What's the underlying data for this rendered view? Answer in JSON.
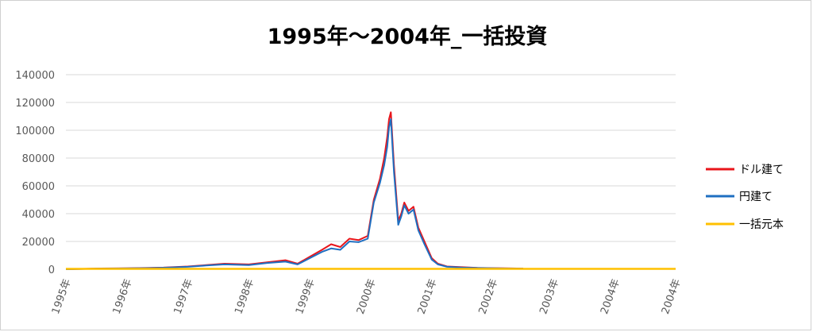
{
  "chart_data": {
    "type": "line",
    "title": "1995年～2004年_一括投資",
    "xlabel": "",
    "ylabel": "",
    "x_ticks": [
      "1995年",
      "1996年",
      "1997年",
      "1998年",
      "1999年",
      "2000年",
      "2001年",
      "2002年",
      "2003年",
      "2004年",
      "2004年"
    ],
    "x_range": [
      1995.0,
      2005.0
    ],
    "ylim": [
      0,
      140000
    ],
    "y_ticks": [
      "0",
      "20000",
      "40000",
      "60000",
      "80000",
      "100000",
      "120000",
      "140000"
    ],
    "grid": true,
    "legend_position": "right",
    "series": [
      {
        "name": "ドル建て",
        "color": "#e8151b",
        "x": [
          1995.0,
          1995.5,
          1996.0,
          1996.3,
          1996.6,
          1997.0,
          1997.3,
          1997.6,
          1998.0,
          1998.3,
          1998.6,
          1998.8,
          1999.0,
          1999.2,
          1999.35,
          1999.5,
          1999.65,
          1999.8,
          1999.95,
          2000.05,
          2000.15,
          2000.22,
          2000.27,
          2000.3,
          2000.33,
          2000.38,
          2000.45,
          2000.5,
          2000.55,
          2000.62,
          2000.7,
          2000.78,
          2000.88,
          2001.0,
          2001.1,
          2001.25,
          2001.5,
          2001.75,
          2002.0,
          2002.3,
          2002.5
        ],
        "y": [
          0,
          500,
          700,
          900,
          1200,
          2000,
          3000,
          4000,
          3500,
          5000,
          6500,
          4000,
          9000,
          14000,
          18000,
          16000,
          22000,
          21000,
          24000,
          50000,
          65000,
          80000,
          95000,
          108000,
          113000,
          75000,
          35000,
          40000,
          48000,
          42000,
          45000,
          30000,
          20000,
          8000,
          4000,
          2000,
          1500,
          1000,
          800,
          600,
          500
        ]
      },
      {
        "name": "円建て",
        "color": "#1f6fc1",
        "x": [
          1995.0,
          1995.5,
          1996.0,
          1996.3,
          1996.6,
          1997.0,
          1997.3,
          1997.6,
          1998.0,
          1998.3,
          1998.6,
          1998.8,
          1999.0,
          1999.2,
          1999.35,
          1999.5,
          1999.65,
          1999.8,
          1999.95,
          2000.05,
          2000.15,
          2000.22,
          2000.27,
          2000.3,
          2000.33,
          2000.38,
          2000.45,
          2000.5,
          2000.55,
          2000.62,
          2000.7,
          2000.78,
          2000.88,
          2001.0,
          2001.1,
          2001.25,
          2001.5,
          2001.75,
          2002.0,
          2002.3,
          2002.5
        ],
        "y": [
          0,
          400,
          600,
          800,
          1100,
          1800,
          2700,
          3500,
          3000,
          4500,
          5500,
          3500,
          8000,
          12500,
          15000,
          14000,
          20000,
          19500,
          22000,
          48000,
          62000,
          75000,
          88000,
          102000,
          108000,
          70000,
          32000,
          38000,
          46000,
          40000,
          43000,
          28000,
          18000,
          7000,
          3500,
          1800,
          1200,
          900,
          700,
          500,
          400
        ]
      },
      {
        "name": "一括元本",
        "color": "#ffc000",
        "x": [
          1995.0,
          2005.0
        ],
        "y": [
          300,
          300
        ]
      }
    ]
  }
}
